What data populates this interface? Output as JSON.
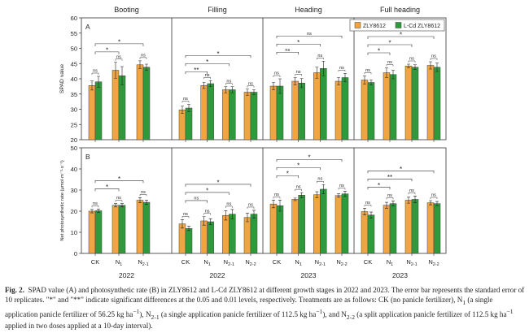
{
  "chart_data": {
    "type": "bar",
    "stages": [
      "Booting",
      "Filling",
      "Heading",
      "Full heading"
    ],
    "categories": [
      [
        "CK",
        "N1",
        "N2-1"
      ],
      [
        "CK",
        "N1",
        "N2-1",
        "N2-2"
      ],
      [
        "CK",
        "N1",
        "N2-1",
        "N2-2"
      ],
      [
        "CK",
        "N1",
        "N2-1",
        "N2-2"
      ]
    ],
    "years": [
      "2022",
      "2022",
      "2023",
      "2023"
    ],
    "legend": [
      {
        "name": "ZLY8612",
        "color": "#f0a442"
      },
      {
        "name": "L-Cd ZLY8612",
        "color": "#2f9a3c"
      }
    ],
    "panels": [
      {
        "label": "A",
        "ylabel": "SPAD value",
        "ylim": [
          20,
          60
        ],
        "yticks": [
          20,
          25,
          30,
          35,
          40,
          45,
          50,
          55,
          60
        ],
        "groups": [
          {
            "zly": [
              37.8,
              42.8,
              44.6
            ],
            "lcd": [
              39.0,
              41.0,
              43.8
            ],
            "zly_err": [
              1.5,
              2.6,
              1.3
            ],
            "lcd_err": [
              1.8,
              3.0,
              1.0
            ],
            "pair_labels": [
              "ns",
              "ns",
              "ns"
            ],
            "brackets": [
              {
                "from": 0,
                "to": 1,
                "label": "*"
              },
              {
                "from": 0,
                "to": 2,
                "label": "*"
              }
            ]
          },
          {
            "zly": [
              29.8,
              37.8,
              36.4,
              35.6
            ],
            "lcd": [
              30.4,
              38.4,
              36.4,
              35.6
            ],
            "zly_err": [
              1.2,
              1.0,
              1.0,
              1.0
            ],
            "lcd_err": [
              1.2,
              1.0,
              1.0,
              0.8
            ],
            "pair_labels": [
              "ns",
              "ns",
              "ns",
              "ns"
            ],
            "brackets": [
              {
                "from": 0,
                "to": 1,
                "label": "**"
              },
              {
                "from": 0,
                "to": 2,
                "label": "*"
              },
              {
                "from": 0,
                "to": 3,
                "label": "*"
              }
            ]
          },
          {
            "zly": [
              37.6,
              39.2,
              42.0,
              39.2
            ],
            "lcd": [
              37.6,
              38.6,
              43.4,
              40.4
            ],
            "zly_err": [
              1.2,
              1.2,
              1.8,
              1.2
            ],
            "lcd_err": [
              2.4,
              1.5,
              2.4,
              1.4
            ],
            "pair_labels": [
              "ns",
              "ns",
              "ns",
              "ns"
            ],
            "brackets": [
              {
                "from": 0,
                "to": 1,
                "label": "ns"
              },
              {
                "from": 0,
                "to": 2,
                "label": "*"
              },
              {
                "from": 0,
                "to": 3,
                "label": "ns"
              }
            ]
          },
          {
            "zly": [
              39.6,
              42.0,
              44.2,
              44.4
            ],
            "lcd": [
              38.8,
              41.4,
              43.8,
              43.8
            ],
            "zly_err": [
              1.4,
              1.6,
              0.6,
              1.2
            ],
            "lcd_err": [
              0.8,
              1.4,
              0.8,
              1.4
            ],
            "pair_labels": [
              "ns",
              "ns",
              "ns",
              "ns"
            ],
            "brackets": [
              {
                "from": 0,
                "to": 1,
                "label": "*"
              },
              {
                "from": 0,
                "to": 2,
                "label": "*"
              },
              {
                "from": 0,
                "to": 3,
                "label": "*"
              }
            ]
          }
        ]
      },
      {
        "label": "B",
        "ylabel": "Net photosynthetic rate (μmol·m⁻²·s⁻¹)",
        "ylim": [
          0,
          50
        ],
        "yticks": [
          0,
          10,
          20,
          30,
          40,
          50
        ],
        "groups": [
          {
            "zly": [
              20.0,
              22.8,
              25.2
            ],
            "lcd": [
              20.2,
              22.8,
              24.2
            ],
            "zly_err": [
              0.8,
              0.8,
              1.2
            ],
            "lcd_err": [
              0.8,
              0.8,
              1.0
            ],
            "pair_labels": [
              "ns",
              "ns",
              "ns"
            ],
            "brackets": [
              {
                "from": 0,
                "to": 1,
                "label": "*"
              },
              {
                "from": 0,
                "to": 2,
                "label": "*"
              }
            ]
          },
          {
            "zly": [
              14.0,
              15.4,
              18.0,
              17.0
            ],
            "lcd": [
              11.8,
              15.0,
              18.6,
              18.6
            ],
            "zly_err": [
              2.0,
              2.0,
              2.2,
              2.0
            ],
            "lcd_err": [
              1.0,
              1.4,
              2.2,
              1.8
            ],
            "pair_labels": [
              "ns",
              "ns",
              "ns",
              "ns"
            ],
            "brackets": [
              {
                "from": 0,
                "to": 1,
                "label": "ns"
              },
              {
                "from": 0,
                "to": 2,
                "label": "*"
              },
              {
                "from": 0,
                "to": 3,
                "label": "*"
              }
            ]
          },
          {
            "zly": [
              23.4,
              25.6,
              27.8,
              27.4
            ],
            "lcd": [
              22.6,
              27.6,
              30.4,
              28.2
            ],
            "zly_err": [
              1.8,
              0.6,
              1.4,
              0.8
            ],
            "lcd_err": [
              2.6,
              1.2,
              2.2,
              1.2
            ],
            "pair_labels": [
              "ns",
              "ns",
              "ns",
              "ns"
            ],
            "brackets": [
              {
                "from": 0,
                "to": 1,
                "label": "*"
              },
              {
                "from": 0,
                "to": 2,
                "label": "*"
              },
              {
                "from": 0,
                "to": 3,
                "label": "*"
              }
            ]
          },
          {
            "zly": [
              19.8,
              22.8,
              25.2,
              24.0
            ],
            "lcd": [
              18.2,
              23.6,
              25.6,
              23.6
            ],
            "zly_err": [
              1.6,
              1.4,
              1.4,
              1.0
            ],
            "lcd_err": [
              1.4,
              1.2,
              1.6,
              1.0
            ],
            "pair_labels": [
              "ns",
              "ns",
              "ns",
              "ns"
            ],
            "brackets": [
              {
                "from": 0,
                "to": 1,
                "label": "*"
              },
              {
                "from": 0,
                "to": 2,
                "label": "**"
              },
              {
                "from": 0,
                "to": 3,
                "label": "*"
              }
            ]
          }
        ]
      }
    ]
  },
  "caption": {
    "fig_label": "Fig. 2.",
    "p1": "SPAD value (A) and photosynthetic rate (B) in ZLY8612 and L-Cd ZLY8612 at different growth stages in 2022 and 2023. The error bar represents the standard error of 10 replicates. \"*\" and \"**\" indicate significant differences at the 0.05 and 0.01 levels, respectively. Treatments are as follows: CK (no panicle fertilizer), N",
    "sub1": "1",
    "p2": " (a single application panicle fertilizer of 56.25 kg ha",
    "sup1": "−1",
    "p3": "), N",
    "sub2": "2-1",
    "p4": " (a single application panicle fertilizer of 112.5 kg ha",
    "sup2": "−1",
    "p5": "), and N",
    "sub3": "2-2",
    "p6": " (a split application panicle fertilizer of 112.5 kg ha",
    "sup3": "−1",
    "p7": " applied in two doses applied at a 10-day interval)."
  }
}
